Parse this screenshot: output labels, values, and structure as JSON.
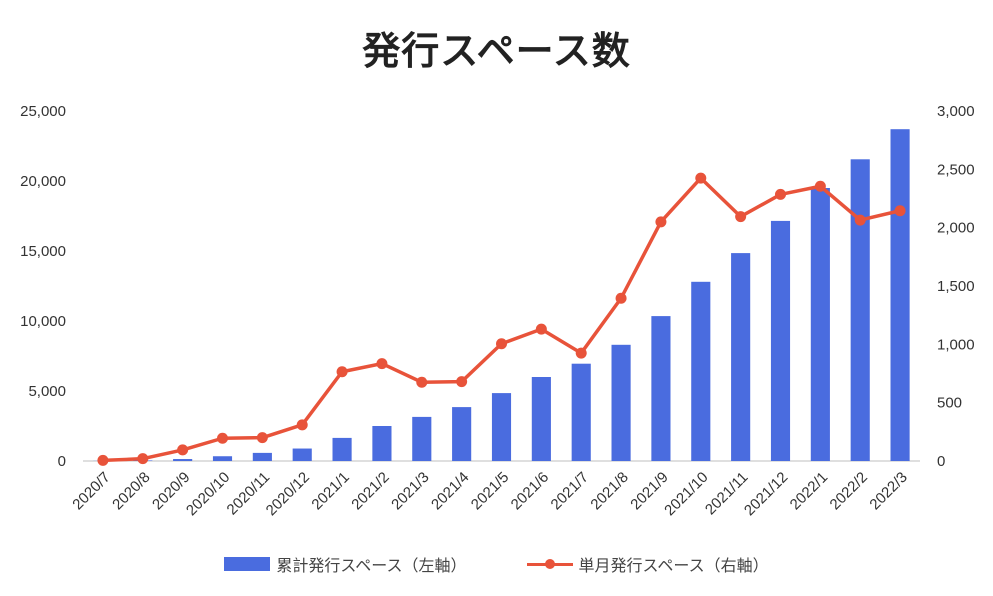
{
  "chart_data": {
    "type": "bar",
    "title": "発行スペース数",
    "categories": [
      "2020/7",
      "2020/8",
      "2020/9",
      "2020/10",
      "2020/11",
      "2020/12",
      "2021/1",
      "2021/2",
      "2021/3",
      "2021/4",
      "2021/5",
      "2021/6",
      "2021/7",
      "2021/8",
      "2021/9",
      "2021/10",
      "2021/11",
      "2021/12",
      "2022/1",
      "2022/2",
      "2022/3"
    ],
    "series": [
      {
        "name": "累計発行スペース（左軸）",
        "type": "bar",
        "axis": "left",
        "color": "#4a6cdf",
        "values": [
          10,
          40,
          140,
          340,
          580,
          890,
          1650,
          2500,
          3150,
          3850,
          4850,
          6000,
          6950,
          8300,
          10350,
          12800,
          14850,
          17150,
          19500,
          21550,
          23700
        ]
      },
      {
        "name": "単月発行スペース（右軸）",
        "type": "line",
        "axis": "right",
        "color": "#e8533a",
        "values": [
          5,
          20,
          95,
          195,
          200,
          310,
          765,
          835,
          675,
          680,
          1005,
          1130,
          925,
          1395,
          2050,
          2425,
          2095,
          2285,
          2355,
          2065,
          2145
        ]
      }
    ],
    "y_left": {
      "ylim": [
        0,
        25000
      ],
      "ticks": [
        "0",
        "5,000",
        "10,000",
        "15,000",
        "20,000",
        "25,000"
      ]
    },
    "y_right": {
      "ylim": [
        0,
        3000
      ],
      "ticks": [
        "0",
        "500",
        "1,000",
        "1,500",
        "2,000",
        "2,500",
        "3,000"
      ]
    },
    "grid": false,
    "legend_position": "bottom"
  }
}
